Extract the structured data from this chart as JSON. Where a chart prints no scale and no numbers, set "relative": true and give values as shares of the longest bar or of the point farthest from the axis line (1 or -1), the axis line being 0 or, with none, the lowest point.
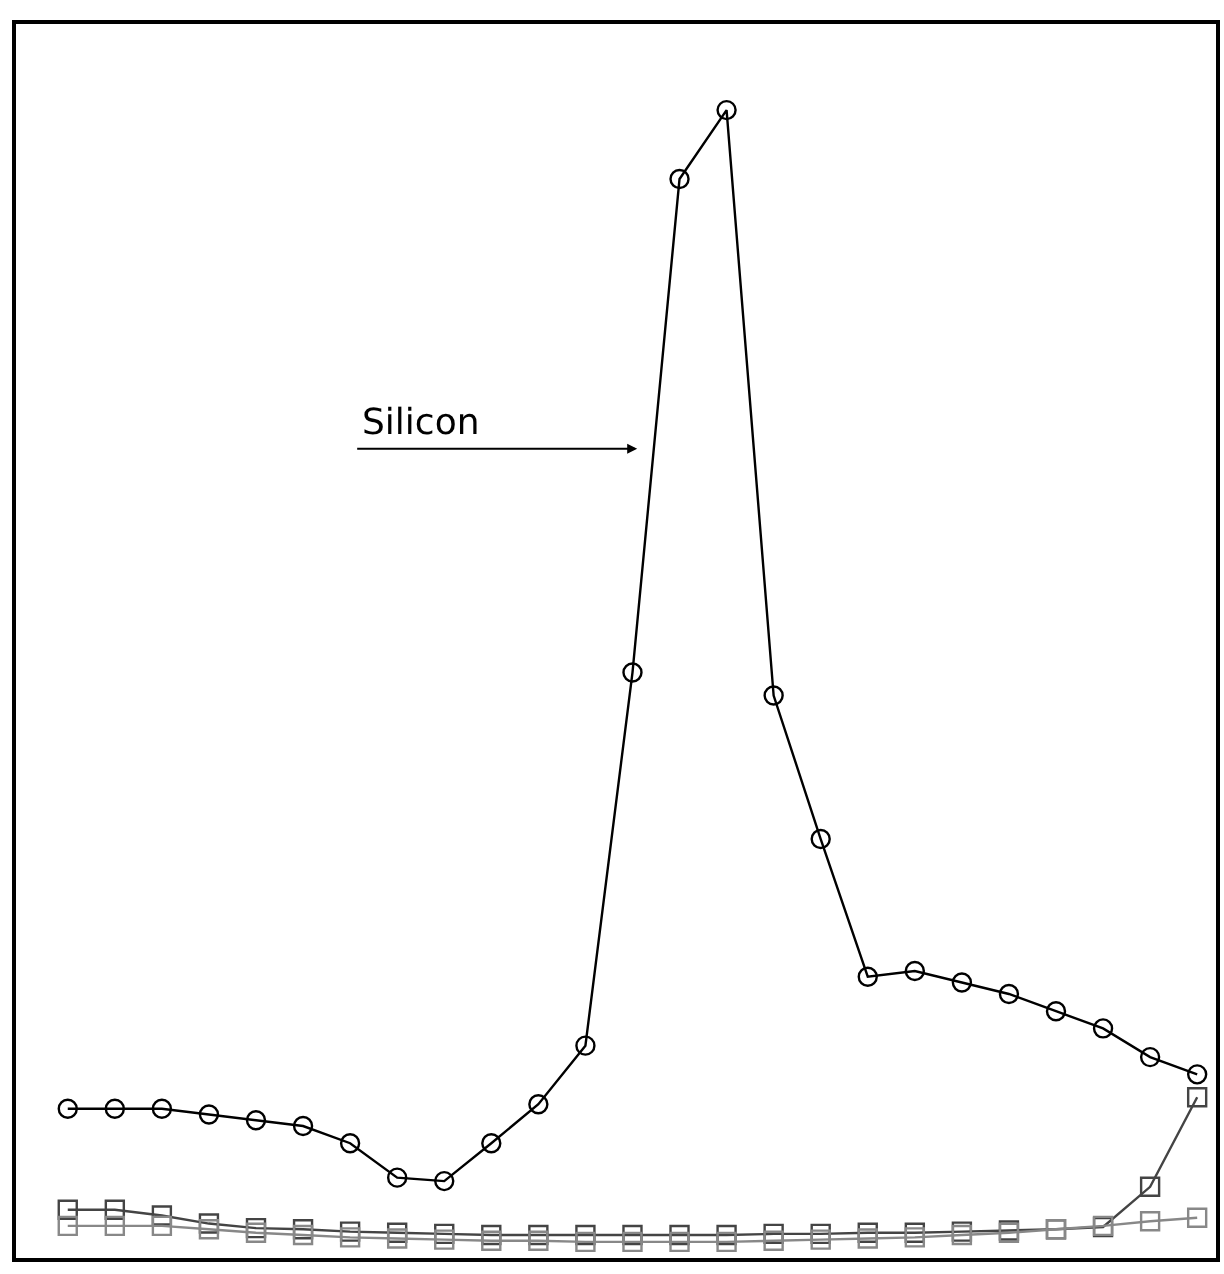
{
  "chart_data": {
    "type": "line",
    "relative": true,
    "categories": [
      null,
      null,
      null,
      null,
      null,
      null,
      null,
      null,
      null,
      null,
      null,
      null,
      null,
      null,
      null,
      null,
      null,
      null,
      null,
      null,
      null,
      null,
      null,
      null,
      null
    ],
    "series": [
      {
        "name": "Silicon",
        "color": "#000000",
        "marker": "circle",
        "values": [
          0.13,
          0.13,
          0.13,
          0.125,
          0.12,
          0.115,
          0.1,
          0.07,
          0.067,
          0.1,
          0.134,
          0.185,
          0.51,
          0.94,
          1.0,
          0.49,
          0.365,
          0.245,
          0.25,
          0.24,
          0.23,
          0.215,
          0.2,
          0.175,
          0.16
        ]
      },
      {
        "color": "#444444",
        "marker": "square",
        "values": [
          0.042,
          0.042,
          0.037,
          0.03,
          0.026,
          0.025,
          0.023,
          0.022,
          0.021,
          0.02,
          0.02,
          0.02,
          0.02,
          0.02,
          0.02,
          0.021,
          0.021,
          0.022,
          0.022,
          0.023,
          0.024,
          0.025,
          0.027,
          0.062,
          0.14
        ]
      },
      {
        "color": "#888888",
        "marker": "square",
        "values": [
          0.028,
          0.028,
          0.028,
          0.025,
          0.022,
          0.02,
          0.018,
          0.017,
          0.016,
          0.015,
          0.015,
          0.014,
          0.014,
          0.014,
          0.014,
          0.015,
          0.016,
          0.017,
          0.018,
          0.02,
          0.022,
          0.025,
          0.028,
          0.032,
          0.035
        ]
      }
    ],
    "legend": false
  }
}
